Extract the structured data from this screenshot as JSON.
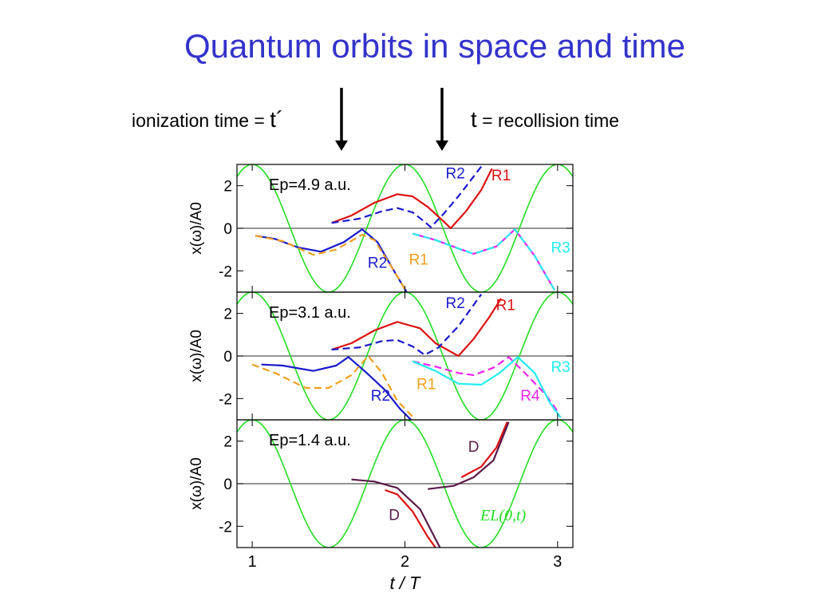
{
  "slide": {
    "title": "Quantum orbits in space and time",
    "ionization_text": "ionization time = ",
    "ionization_symbol": "t´",
    "recollision_symbol": "t",
    "recollision_text": " = recollision time"
  },
  "colors": {
    "title": "#3333cc",
    "field": "#22dd22",
    "R1": "#dd1111",
    "R2": "#1a1acc",
    "R1_low": "#f0a020",
    "R3": "#22eeee",
    "R4": "#ee22ee",
    "D": "#5a1a4a"
  },
  "chart_data": {
    "type": "line",
    "xlabel": "t / T",
    "ylabel": "x(ω)/A0",
    "xlim": [
      0.9,
      3.1
    ],
    "xticks": [
      1,
      2,
      3
    ],
    "ylim": [
      -3,
      3
    ],
    "yticks": [
      2,
      0,
      -2
    ],
    "field_label": "EL(0,t)",
    "panels": [
      {
        "ep_label": "Ep=4.9 a.u.",
        "ep_value": 4.9,
        "series": [
          {
            "name": "R1",
            "role": "R1",
            "dash": false,
            "points": [
              [
                1.52,
                0.25
              ],
              [
                1.65,
                0.6
              ],
              [
                1.8,
                1.2
              ],
              [
                1.95,
                1.6
              ],
              [
                2.05,
                1.5
              ],
              [
                2.15,
                1.0
              ],
              [
                2.25,
                0.35
              ],
              [
                2.3,
                0.0
              ],
              [
                2.4,
                0.8
              ],
              [
                2.5,
                1.8
              ],
              [
                2.57,
                2.8
              ]
            ]
          },
          {
            "name": "R2",
            "role": "R2",
            "dash": true,
            "points": [
              [
                1.52,
                0.25
              ],
              [
                1.7,
                0.45
              ],
              [
                1.85,
                0.8
              ],
              [
                1.95,
                0.95
              ],
              [
                2.05,
                0.75
              ],
              [
                2.13,
                0.3
              ],
              [
                2.17,
                0.05
              ],
              [
                2.25,
                0.65
              ],
              [
                2.35,
                1.5
              ],
              [
                2.5,
                2.9
              ]
            ]
          },
          {
            "name": "R2",
            "role": "R2",
            "dash": false,
            "points": [
              [
                1.02,
                -0.35
              ],
              [
                1.15,
                -0.5
              ],
              [
                1.3,
                -0.9
              ],
              [
                1.45,
                -1.1
              ],
              [
                1.6,
                -0.65
              ],
              [
                1.72,
                -0.05
              ],
              [
                1.82,
                -0.65
              ],
              [
                1.92,
                -1.9
              ],
              [
                2.02,
                -3.1
              ]
            ]
          },
          {
            "name": "R1",
            "role": "R1_low",
            "dash": true,
            "points": [
              [
                1.02,
                -0.35
              ],
              [
                1.2,
                -0.6
              ],
              [
                1.4,
                -1.25
              ],
              [
                1.55,
                -1.0
              ],
              [
                1.72,
                -0.3
              ],
              [
                1.8,
                -0.55
              ],
              [
                1.92,
                -1.9
              ],
              [
                2.02,
                -3.1
              ]
            ]
          },
          {
            "name": "R3",
            "role": "R4",
            "dash": false,
            "points": [
              [
                2.05,
                -0.25
              ],
              [
                2.2,
                -0.55
              ],
              [
                2.35,
                -0.95
              ],
              [
                2.45,
                -1.2
              ],
              [
                2.6,
                -0.85
              ],
              [
                2.72,
                -0.05
              ],
              [
                2.85,
                -1.3
              ],
              [
                2.98,
                -2.9
              ]
            ]
          },
          {
            "name": "R3",
            "role": "R3",
            "dash": true,
            "points": [
              [
                2.05,
                -0.25
              ],
              [
                2.2,
                -0.55
              ],
              [
                2.35,
                -0.95
              ],
              [
                2.45,
                -1.2
              ],
              [
                2.6,
                -0.85
              ],
              [
                2.72,
                -0.05
              ],
              [
                2.85,
                -1.3
              ],
              [
                2.98,
                -2.9
              ]
            ]
          }
        ],
        "labels": [
          {
            "text": "R2",
            "role": "R2",
            "x": 2.33,
            "y": 2.35
          },
          {
            "text": "R1",
            "role": "R1",
            "x": 2.63,
            "y": 2.25
          },
          {
            "text": "R2",
            "role": "R2",
            "x": 1.82,
            "y": -1.85
          },
          {
            "text": "R1",
            "role": "R1_low",
            "x": 2.09,
            "y": -1.7
          },
          {
            "text": "R3",
            "role": "R3",
            "x": 3.02,
            "y": -1.15
          }
        ]
      },
      {
        "ep_label": "Ep=3.1 a.u.",
        "ep_value": 3.1,
        "series": [
          {
            "name": "R1",
            "role": "R1",
            "dash": false,
            "points": [
              [
                1.52,
                0.3
              ],
              [
                1.65,
                0.6
              ],
              [
                1.8,
                1.2
              ],
              [
                1.95,
                1.6
              ],
              [
                2.1,
                1.3
              ],
              [
                2.2,
                0.6
              ],
              [
                2.35,
                0.0
              ],
              [
                2.45,
                0.8
              ],
              [
                2.55,
                1.8
              ],
              [
                2.63,
                2.7
              ]
            ]
          },
          {
            "name": "R2",
            "role": "R2",
            "dash": true,
            "points": [
              [
                1.52,
                0.3
              ],
              [
                1.7,
                0.4
              ],
              [
                1.85,
                0.7
              ],
              [
                1.95,
                0.75
              ],
              [
                2.05,
                0.45
              ],
              [
                2.13,
                0.05
              ],
              [
                2.22,
                0.4
              ],
              [
                2.35,
                1.4
              ],
              [
                2.5,
                2.9
              ]
            ]
          },
          {
            "name": "R2",
            "role": "R2",
            "dash": false,
            "points": [
              [
                1.06,
                -0.4
              ],
              [
                1.2,
                -0.45
              ],
              [
                1.4,
                -0.7
              ],
              [
                1.55,
                -0.45
              ],
              [
                1.63,
                -0.05
              ],
              [
                1.75,
                -0.8
              ],
              [
                1.87,
                -1.6
              ],
              [
                1.97,
                -2.5
              ],
              [
                2.04,
                -3.0
              ]
            ]
          },
          {
            "name": "R1",
            "role": "R1_low",
            "dash": true,
            "points": [
              [
                1.0,
                -0.4
              ],
              [
                1.15,
                -0.8
              ],
              [
                1.35,
                -1.5
              ],
              [
                1.5,
                -1.5
              ],
              [
                1.65,
                -0.9
              ],
              [
                1.76,
                -0.0
              ],
              [
                1.85,
                -0.8
              ],
              [
                1.95,
                -2.1
              ],
              [
                2.07,
                -3.0
              ]
            ]
          },
          {
            "name": "R4",
            "role": "R4",
            "dash": true,
            "points": [
              [
                2.05,
                -0.25
              ],
              [
                2.2,
                -0.5
              ],
              [
                2.35,
                -0.8
              ],
              [
                2.45,
                -0.9
              ],
              [
                2.58,
                -0.55
              ],
              [
                2.68,
                -0.05
              ],
              [
                2.8,
                -0.9
              ],
              [
                2.92,
                -1.8
              ],
              [
                3.0,
                -2.6
              ]
            ]
          },
          {
            "name": "R3",
            "role": "R3",
            "dash": false,
            "points": [
              [
                2.05,
                -0.25
              ],
              [
                2.2,
                -0.7
              ],
              [
                2.35,
                -1.3
              ],
              [
                2.5,
                -1.35
              ],
              [
                2.62,
                -0.8
              ],
              [
                2.74,
                -0.05
              ],
              [
                2.85,
                -0.8
              ],
              [
                2.95,
                -2.2
              ],
              [
                3.02,
                -2.9
              ]
            ]
          }
        ],
        "labels": [
          {
            "text": "R2",
            "role": "R2",
            "x": 2.33,
            "y": 2.25
          },
          {
            "text": "R1",
            "role": "R1",
            "x": 2.66,
            "y": 2.15
          },
          {
            "text": "R2",
            "role": "R2",
            "x": 1.84,
            "y": -2.1
          },
          {
            "text": "R1",
            "role": "R1_low",
            "x": 2.14,
            "y": -1.55
          },
          {
            "text": "R3",
            "role": "R3",
            "x": 3.02,
            "y": -0.75
          },
          {
            "text": "R4",
            "role": "R4",
            "x": 2.82,
            "y": -2.1
          }
        ]
      },
      {
        "ep_label": "Ep=1.4 a.u.",
        "ep_value": 1.4,
        "series": [
          {
            "name": "D",
            "role": "R1",
            "dash": false,
            "points": [
              [
                2.37,
                0.3
              ],
              [
                2.5,
                0.8
              ],
              [
                2.6,
                1.7
              ],
              [
                2.67,
                2.9
              ]
            ]
          },
          {
            "name": "D",
            "role": "D",
            "dash": false,
            "points": [
              [
                2.15,
                -0.25
              ],
              [
                2.32,
                -0.1
              ],
              [
                2.45,
                0.3
              ],
              [
                2.58,
                1.1
              ],
              [
                2.68,
                2.9
              ]
            ]
          },
          {
            "name": "D",
            "role": "R1",
            "dash": false,
            "points": [
              [
                1.87,
                -0.3
              ],
              [
                1.95,
                -0.5
              ],
              [
                2.05,
                -1.3
              ],
              [
                2.15,
                -2.5
              ],
              [
                2.2,
                -3.0
              ]
            ]
          },
          {
            "name": "D",
            "role": "D",
            "dash": false,
            "points": [
              [
                1.65,
                0.2
              ],
              [
                1.8,
                0.1
              ],
              [
                1.95,
                -0.2
              ],
              [
                2.1,
                -1.2
              ],
              [
                2.2,
                -2.6
              ],
              [
                2.23,
                -3.0
              ]
            ]
          }
        ],
        "labels": [
          {
            "text": "D",
            "role": "D",
            "x": 2.45,
            "y": 1.5
          },
          {
            "text": "D",
            "role": "D",
            "x": 1.93,
            "y": -1.7
          }
        ]
      }
    ]
  }
}
